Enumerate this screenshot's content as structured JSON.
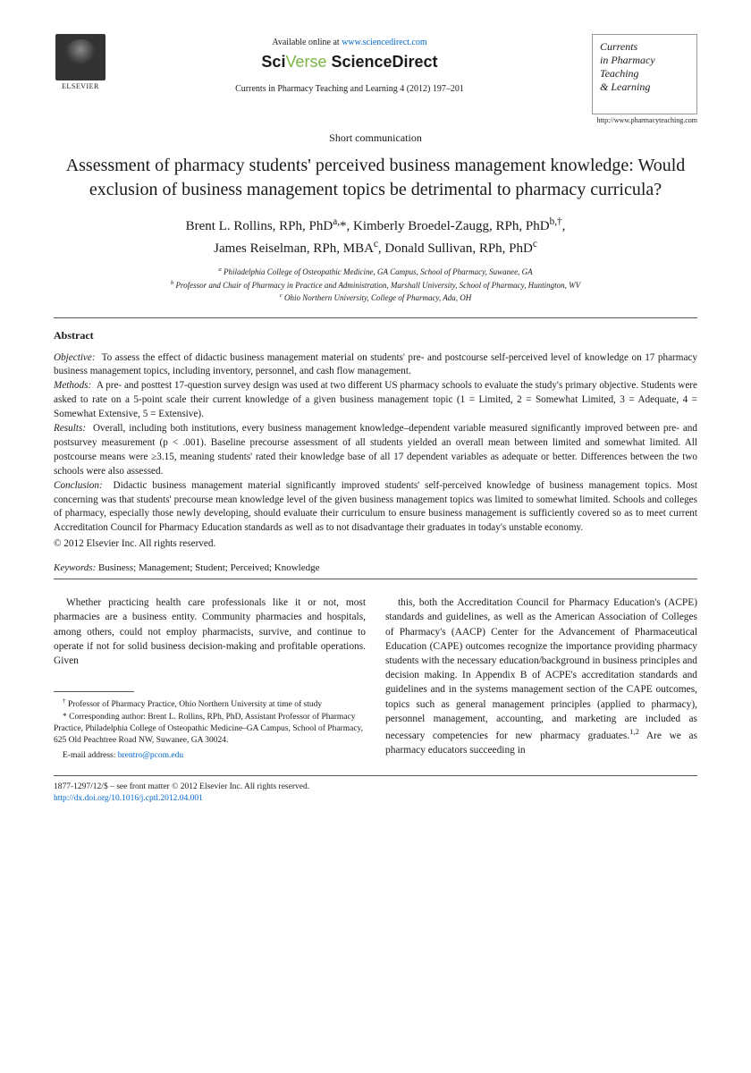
{
  "header": {
    "available_text": "Available online at ",
    "available_url": "www.sciencedirect.com",
    "platform_sci": "Sci",
    "platform_verse": "Verse",
    "platform_sd": " ScienceDirect",
    "elsevier_label": "ELSEVIER",
    "citation": "Currents in Pharmacy Teaching and Learning 4 (2012) 197–201",
    "journal_box_l1": "Currents",
    "journal_box_l2": "in Pharmacy",
    "journal_box_l3": "Teaching",
    "journal_box_l4": "& Learning",
    "journal_url": "http://www.pharmacyteaching.com"
  },
  "article": {
    "type": "Short communication",
    "title": "Assessment of pharmacy students' perceived business management knowledge: Would exclusion of business management topics be detrimental to pharmacy curricula?",
    "authors_html": "Brent L. Rollins, RPh, PhD<sup>a,</sup>*, Kimberly Broedel-Zaugg, RPh, PhD<sup>b,†</sup>,<br>James Reiselman, RPh, MBA<sup>c</sup>, Donald Sullivan, RPh, PhD<sup>c</sup>",
    "affil_a": "Philadelphia College of Osteopathic Medicine, GA Campus, School of Pharmacy, Suwanee, GA",
    "affil_b": "Professor and Chair of Pharmacy in Practice and Administration, Marshall University, School of Pharmacy, Huntington, WV",
    "affil_c": "Ohio Northern University, College of Pharmacy, Ada, OH"
  },
  "abstract": {
    "heading": "Abstract",
    "objective_label": "Objective:",
    "objective": "To assess the effect of didactic business management material on students' pre- and postcourse self-perceived level of knowledge on 17 pharmacy business management topics, including inventory, personnel, and cash flow management.",
    "methods_label": "Methods:",
    "methods": "A pre- and posttest 17-question survey design was used at two different US pharmacy schools to evaluate the study's primary objective. Students were asked to rate on a 5-point scale their current knowledge of a given business management topic (1 = Limited, 2 = Somewhat Limited, 3 = Adequate, 4 = Somewhat Extensive, 5 = Extensive).",
    "results_label": "Results:",
    "results": "Overall, including both institutions, every business management knowledge–dependent variable measured significantly improved between pre- and postsurvey measurement (p < .001). Baseline precourse assessment of all students yielded an overall mean between limited and somewhat limited. All postcourse means were ≥3.15, meaning students' rated their knowledge base of all 17 dependent variables as adequate or better. Differences between the two schools were also assessed.",
    "conclusion_label": "Conclusion:",
    "conclusion": "Didactic business management material significantly improved students' self-perceived knowledge of business management topics. Most concerning was that students' precourse mean knowledge level of the given business management topics was limited to somewhat limited. Schools and colleges of pharmacy, especially those newly developing, should evaluate their curriculum to ensure business management is sufficiently covered so as to meet current Accreditation Council for Pharmacy Education standards as well as to not disadvantage their graduates in today's unstable economy.",
    "copyright": "© 2012 Elsevier Inc. All rights reserved.",
    "keywords_label": "Keywords:",
    "keywords": "Business; Management; Student; Perceived; Knowledge"
  },
  "body": {
    "col1_p1": "Whether practicing health care professionals like it or not, most pharmacies are a business entity. Community pharmacies and hospitals, among others, could not employ pharmacists, survive, and continue to operate if not for solid business decision-making and profitable operations. Given",
    "col2_p1": "this, both the Accreditation Council for Pharmacy Education's (ACPE) standards and guidelines, as well as the American Association of Colleges of Pharmacy's (AACP) Center for the Advancement of Pharmaceutical Education (CAPE) outcomes recognize the importance providing pharmacy students with the necessary education/background in business principles and decision making. In Appendix B of ACPE's accreditation standards and guidelines and in the systems management section of the CAPE outcomes, topics such as general management principles (applied to pharmacy), personnel management, accounting, and marketing are included as necessary competencies for new pharmacy graduates.",
    "col2_p1_suffix": " Are we as pharmacy educators succeeding in",
    "col2_refs": "1,2"
  },
  "footnotes": {
    "dagger": "Professor of Pharmacy Practice, Ohio Northern University at time of study",
    "corr": "Corresponding author: Brent L. Rollins, RPh, PhD, Assistant Professor of Pharmacy Practice, Philadelphia College of Osteopathic Medicine–GA Campus, School of Pharmacy, 625 Old Peachtree Road NW, Suwanee, GA 30024.",
    "email_label": "E-mail address: ",
    "email": "brentro@pcom.edu"
  },
  "footer": {
    "line1": "1877-1297/12/$ – see front matter © 2012 Elsevier Inc. All rights reserved.",
    "doi": "http://dx.doi.org/10.1016/j.cptl.2012.04.001"
  },
  "colors": {
    "link": "#0066cc",
    "text": "#1a1a1a",
    "rule": "#555555",
    "sciverse_green": "#7bb642",
    "background": "#ffffff"
  },
  "typography": {
    "title_fontsize": 20,
    "authors_fontsize": 15,
    "body_fontsize": 11.4,
    "abstract_fontsize": 11.2,
    "footnote_fontsize": 9.5,
    "font_family": "Georgia, Times New Roman, serif"
  }
}
